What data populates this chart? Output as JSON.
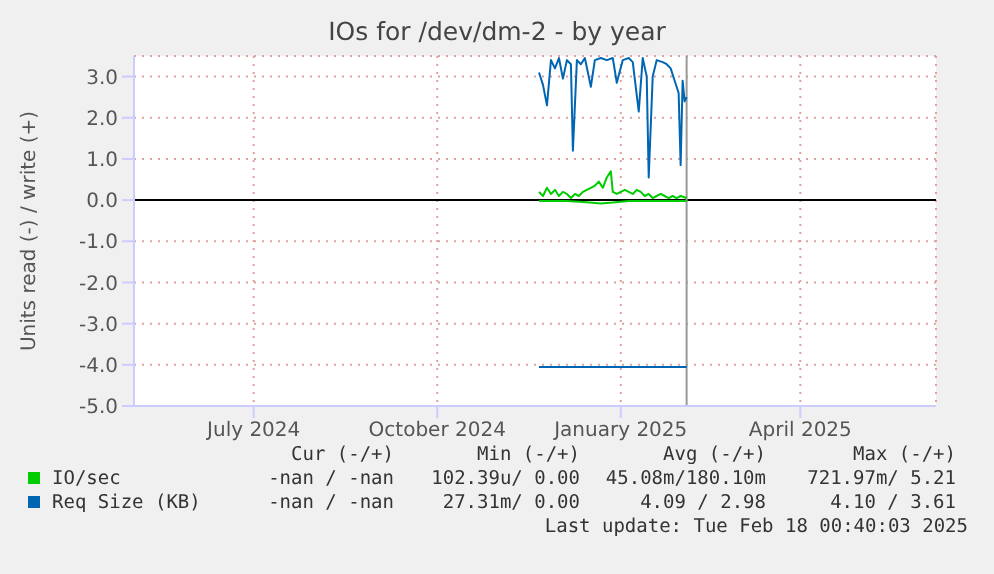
{
  "chart_data": {
    "type": "line",
    "title": "IOs for /dev/dm-2 - by year",
    "ylabel": "Units read (-) / write (+)",
    "xlim": [
      "2024-05-02",
      "2025-06-08"
    ],
    "xticks": [
      {
        "value": "2024-07-01",
        "label": "July 2024"
      },
      {
        "value": "2024-10-01",
        "label": "October 2024"
      },
      {
        "value": "2025-01-01",
        "label": "January 2025"
      },
      {
        "value": "2025-04-01",
        "label": "April 2025"
      }
    ],
    "ylim": [
      -5,
      3.5
    ],
    "yticks": [
      {
        "value": -5,
        "label": "-5.0"
      },
      {
        "value": -4,
        "label": "-4.0"
      },
      {
        "value": -3,
        "label": "-3.0"
      },
      {
        "value": -2,
        "label": "-2.0"
      },
      {
        "value": -1,
        "label": "-1.0"
      },
      {
        "value": 0,
        "label": "0.0"
      },
      {
        "value": 1,
        "label": "1.0"
      },
      {
        "value": 2,
        "label": "2.0"
      },
      {
        "value": 3,
        "label": "3.0"
      }
    ],
    "grid": true,
    "legend": "bottom",
    "ref_lines": [
      {
        "axis": "y",
        "value": 0,
        "color": "#000000"
      },
      {
        "axis": "x",
        "value": "2025-02-03",
        "color": "#999999"
      }
    ],
    "series": [
      {
        "color": "#00cc00",
        "x": [
          "2024-11-21",
          "2024-12-05",
          "2024-12-15",
          "2024-12-22",
          "2024-12-28",
          "2025-01-05",
          "2025-01-20",
          "2025-02-03"
        ],
        "values": [
          -0.02,
          -0.02,
          -0.05,
          -0.08,
          -0.06,
          -0.02,
          -0.02,
          -0.02
        ]
      },
      {
        "name": "IO/sec",
        "color": "#00cc00",
        "x": [
          "2024-11-21",
          "2024-11-23",
          "2024-11-25",
          "2024-11-27",
          "2024-11-29",
          "2024-12-01",
          "2024-12-03",
          "2024-12-05",
          "2024-12-07",
          "2024-12-09",
          "2024-12-11",
          "2024-12-13",
          "2024-12-15",
          "2024-12-17",
          "2024-12-19",
          "2024-12-21",
          "2024-12-23",
          "2024-12-25",
          "2024-12-27",
          "2024-12-28",
          "2024-12-30",
          "2025-01-01",
          "2025-01-03",
          "2025-01-05",
          "2025-01-07",
          "2025-01-09",
          "2025-01-11",
          "2025-01-13",
          "2025-01-15",
          "2025-01-17",
          "2025-01-19",
          "2025-01-21",
          "2025-01-23",
          "2025-01-25",
          "2025-01-27",
          "2025-01-29",
          "2025-01-31",
          "2025-02-03"
        ],
        "values": [
          0.2,
          0.1,
          0.3,
          0.15,
          0.25,
          0.1,
          0.2,
          0.15,
          0.05,
          0.15,
          0.1,
          0.2,
          0.25,
          0.3,
          0.35,
          0.45,
          0.3,
          0.55,
          0.7,
          0.2,
          0.15,
          0.2,
          0.25,
          0.2,
          0.15,
          0.25,
          0.2,
          0.1,
          0.15,
          0.05,
          0.1,
          0.15,
          0.1,
          0.05,
          0.1,
          0.05,
          0.1,
          0.05
        ]
      },
      {
        "color": "#0066b3",
        "x": [
          "2024-11-21",
          "2025-02-03"
        ],
        "values": [
          -4.05,
          -4.05
        ]
      },
      {
        "name": "Req Size (KB)",
        "color": "#0066b3",
        "x": [
          "2024-11-21",
          "2024-11-23",
          "2024-11-25",
          "2024-11-27",
          "2024-11-29",
          "2024-12-01",
          "2024-12-03",
          "2024-12-05",
          "2024-12-07",
          "2024-12-08",
          "2024-12-10",
          "2024-12-12",
          "2024-12-14",
          "2024-12-17",
          "2024-12-19",
          "2024-12-22",
          "2024-12-25",
          "2024-12-28",
          "2024-12-30",
          "2025-01-02",
          "2025-01-05",
          "2025-01-07",
          "2025-01-10",
          "2025-01-12",
          "2025-01-14",
          "2025-01-15",
          "2025-01-17",
          "2025-01-19",
          "2025-01-22",
          "2025-01-24",
          "2025-01-26",
          "2025-01-28",
          "2025-01-30",
          "2025-01-31",
          "2025-02-01",
          "2025-02-02",
          "2025-02-03"
        ],
        "values": [
          3.1,
          2.8,
          2.3,
          3.4,
          3.2,
          3.45,
          2.95,
          3.4,
          3.3,
          1.2,
          3.4,
          3.3,
          3.45,
          2.75,
          3.4,
          3.45,
          3.4,
          3.45,
          2.85,
          3.4,
          3.45,
          3.35,
          2.15,
          3.45,
          3.0,
          0.55,
          3.0,
          3.4,
          3.35,
          3.3,
          3.2,
          2.9,
          2.6,
          0.85,
          2.9,
          2.4,
          2.5
        ]
      }
    ],
    "annotations": [
      "Cur (-/+)",
      "Min (-/+)",
      "Avg (-/+)",
      "Max (-/+)",
      "-nan / -nan",
      "102.39u/ 0.00",
      "45.08m/180.10m",
      "721.97m/ 5.21",
      "-nan / -nan",
      "27.31m/ 0.00",
      "4.09 / 2.98",
      "4.10 / 3.61",
      "Last update: Tue Feb 18 00:40:03 2025"
    ]
  }
}
